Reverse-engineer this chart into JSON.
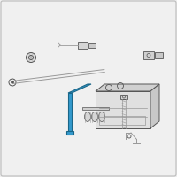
{
  "bg": "#f0f0f0",
  "border": "#bbbbbb",
  "lc": "#999999",
  "dc": "#555555",
  "hc": "#3399cc",
  "hc_dark": "#1a6688",
  "fc": "#e0e0e0",
  "fc2": "#d0d0d0",
  "fc3": "#c8c8c8"
}
